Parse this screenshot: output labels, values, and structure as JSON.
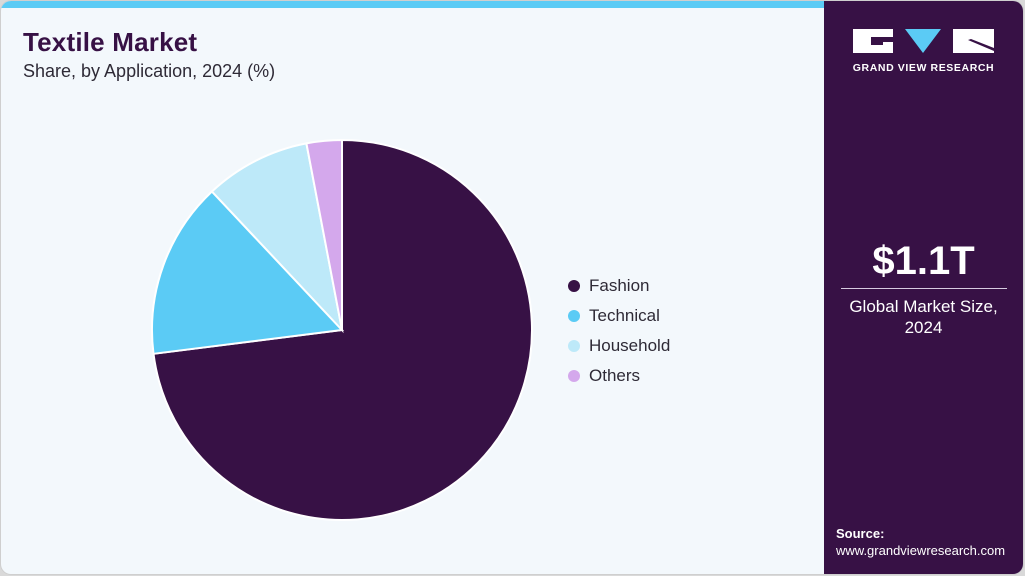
{
  "header": {
    "title": "Textile Market",
    "subtitle": "Share, by Application, 2024 (%)"
  },
  "legend": [
    {
      "label": "Fashion",
      "color": "#371145"
    },
    {
      "label": "Technical",
      "color": "#5bcbf5"
    },
    {
      "label": "Household",
      "color": "#bde9f9"
    },
    {
      "label": "Others",
      "color": "#d4a8ec"
    }
  ],
  "sidebar": {
    "logo_text": "GRAND VIEW RESEARCH",
    "market_size": "$1.1T",
    "market_caption_line1": "Global Market Size,",
    "market_caption_line2": "2024",
    "source_label": "Source:",
    "source_url": "www.grandviewresearch.com"
  },
  "colors": {
    "brand_dark": "#371145",
    "accent": "#5bcbf5",
    "background": "#f3f8fc"
  },
  "chart_data": {
    "type": "pie",
    "title": "Textile Market",
    "subtitle": "Share, by Application, 2024 (%)",
    "categories": [
      "Fashion",
      "Technical",
      "Household",
      "Others"
    ],
    "values": [
      73,
      15,
      9,
      3
    ],
    "colors": [
      "#371145",
      "#5bcbf5",
      "#bde9f9",
      "#d4a8ec"
    ],
    "start_angle": "12 o'clock, clockwise",
    "legend_position": "right"
  }
}
